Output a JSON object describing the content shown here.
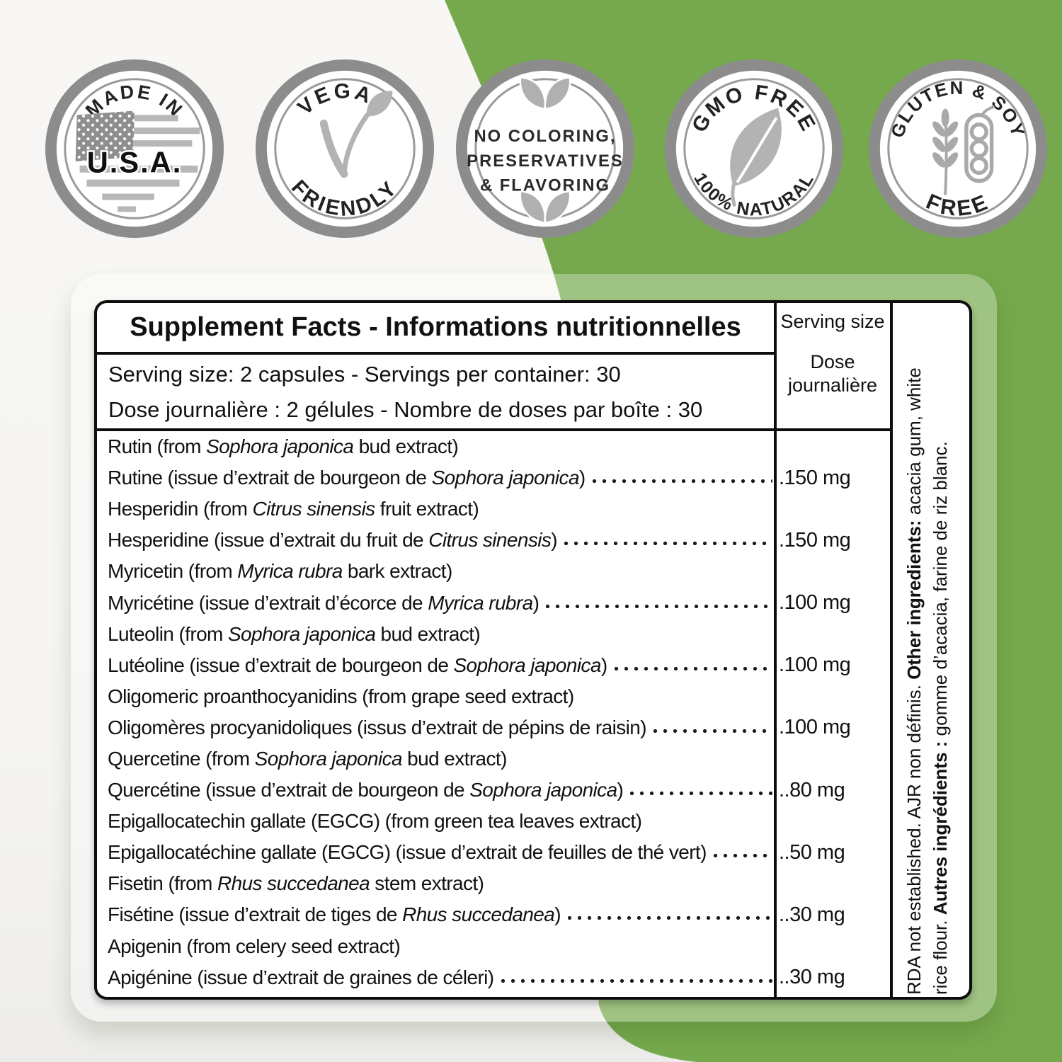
{
  "colors": {
    "green": "#76a94d",
    "badge_ring_gray": "#8c8c8c",
    "badge_icon_gray": "#b0b0b0",
    "text_black": "#111111"
  },
  "badges": {
    "usa": {
      "arc_top": "MADE IN",
      "label": "U.S.A."
    },
    "vegan": {
      "arc_top": "VEGAN",
      "arc_bottom": "FRIENDLY"
    },
    "clean": {
      "line1": "NO COLORING,",
      "line2": "PRESERVATIVES",
      "line3": "& FLAVORING"
    },
    "gmo": {
      "arc_top": "GMO FREE",
      "arc_bottom": "100% NATURAL"
    },
    "gluten": {
      "arc_top": "GLUTEN & SOY",
      "arc_bottom": "FREE"
    }
  },
  "table": {
    "title": "Supplement Facts - Informations nutritionnelles",
    "serving_col": {
      "en": "Serving size",
      "fr": "Dose journalière"
    },
    "serving_row": {
      "en": "Serving size: 2 capsules - Servings per container: 30",
      "fr": "Dose journalière : 2 gélules - Nombre de doses par boîte : 30"
    },
    "ingredients": [
      {
        "en": "Rutin (from <i>Sophora japonica</i> bud extract)",
        "fr": "Rutine (issue d’extrait de bourgeon de <i>Sophora japonica</i>)",
        "value": ".150 mg"
      },
      {
        "en": "Hesperidin (from <i>Citrus sinensis</i> fruit extract)",
        "fr": "Hesperidine (issue d’extrait du fruit de <i>Citrus sinensis</i>)",
        "value": ".150 mg"
      },
      {
        "en": "Myricetin (from <i>Myrica rubra</i> bark extract)",
        "fr": "Myricétine (issue d’extrait d’écorce de <i>Myrica rubra</i>)",
        "value": ".100 mg"
      },
      {
        "en": "Luteolin (from <i>Sophora japonica</i> bud extract)",
        "fr": "Lutéoline (issue d’extrait de bourgeon de <i>Sophora japonica</i>)",
        "value": ".100 mg"
      },
      {
        "en": "Oligomeric proanthocyanidins (from grape seed extract)",
        "fr": "Oligomères procyanidoliques (issus d’extrait de pépins de raisin)",
        "value": ".100 mg"
      },
      {
        "en": "Quercetine (from <i>Sophora japonica</i> bud extract)",
        "fr": "Quercétine (issue d’extrait de bourgeon de <i>Sophora japonica</i>)",
        "value": "..80 mg"
      },
      {
        "en": "Epigallocatechin gallate (EGCG) (from green tea leaves extract)",
        "fr": "Epigallocatéchine gallate (EGCG) (issue d’extrait de feuilles de thé vert)",
        "value": "..50 mg"
      },
      {
        "en": "Fisetin (from <i>Rhus succedanea</i> stem extract)",
        "fr": "Fisétine (issue d’extrait de tiges de <i>Rhus succedanea</i>)",
        "value": "..30 mg"
      },
      {
        "en": "Apigenin (from celery seed extract)",
        "fr": "Apigénine (issue d’extrait de graines de céleri)",
        "value": "..30 mg"
      }
    ],
    "side_note": {
      "line1": "RDA not established. AJR non définis. <b>Other ingredients:</b> acacia gum, white",
      "line2": "rice flour. <b>Autres ingrédients :</b> gomme d’acacia, farine de riz blanc."
    }
  }
}
